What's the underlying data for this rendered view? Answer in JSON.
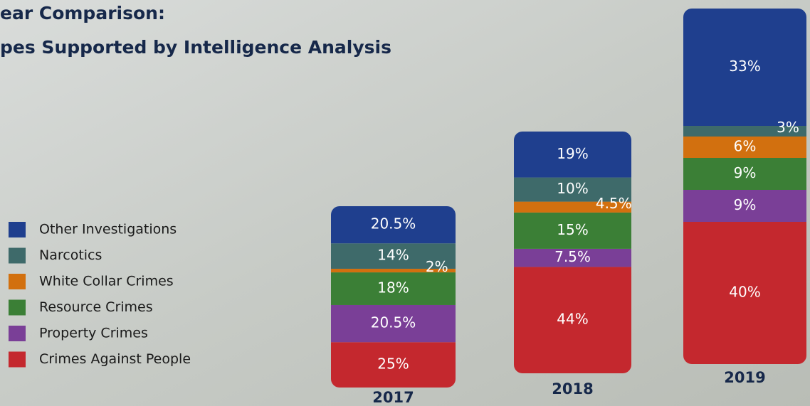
{
  "chart_data": {
    "type": "stacked-bar",
    "title_lines": [
      "ear Comparison:",
      "pes Supported by Intelligence Analysis"
    ],
    "categories": [
      "2017",
      "2018",
      "2019"
    ],
    "series": [
      {
        "name": "Crimes Against People",
        "color": "#c4282e",
        "values": [
          25,
          44,
          40
        ],
        "value_labels": [
          "25%",
          "44%",
          "40%"
        ]
      },
      {
        "name": "Property Crimes",
        "color": "#7a3f97",
        "values": [
          20.5,
          7.5,
          9
        ],
        "value_labels": [
          "20.5%",
          "7.5%",
          "9%"
        ]
      },
      {
        "name": "Resource Crimes",
        "color": "#3b7f36",
        "values": [
          18,
          15,
          9
        ],
        "value_labels": [
          "18%",
          "15%",
          "9%"
        ]
      },
      {
        "name": "White Collar Crimes",
        "color": "#d2700f",
        "values": [
          2,
          4.5,
          6
        ],
        "value_labels": [
          "2%",
          "4.5%",
          "6%"
        ]
      },
      {
        "name": "Narcotics",
        "color": "#3e6a6a",
        "values": [
          14,
          10,
          3
        ],
        "value_labels": [
          "14%",
          "10%",
          "3%"
        ]
      },
      {
        "name": "Other Investigations",
        "color": "#1f3f8e",
        "values": [
          20.5,
          19,
          33
        ],
        "value_labels": [
          "20.5%",
          "19%",
          "33%"
        ]
      }
    ]
  }
}
